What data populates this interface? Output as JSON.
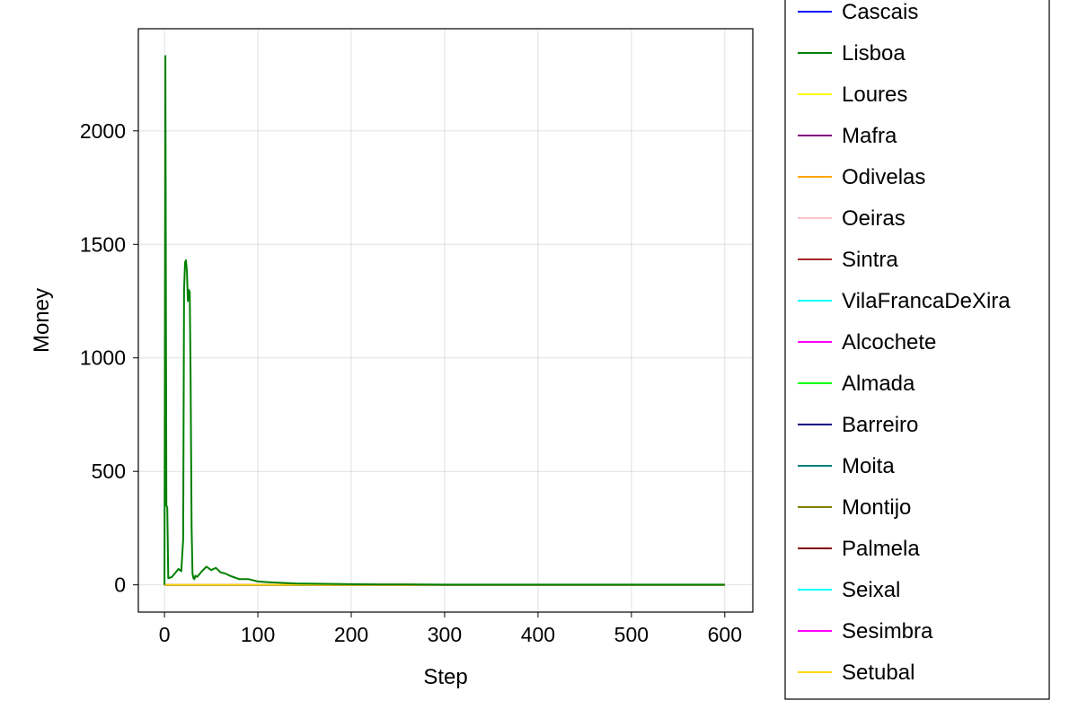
{
  "chart_data": {
    "type": "line",
    "title": "",
    "xlabel": "Step",
    "ylabel": "Money",
    "xlim": [
      -28,
      630
    ],
    "ylim": [
      -120,
      2450
    ],
    "xticks": [
      0,
      100,
      200,
      300,
      400,
      500,
      600
    ],
    "yticks": [
      0,
      500,
      1000,
      1500,
      2000
    ],
    "grid": true,
    "legend_position": "outside-right",
    "series": [
      {
        "name": "Cascais",
        "color": "#0000ff",
        "x": [
          0,
          600
        ],
        "values": [
          0,
          0
        ]
      },
      {
        "name": "Lisboa",
        "color": "#008000",
        "x": [
          0,
          1,
          2,
          3,
          4,
          5,
          8,
          12,
          15,
          18,
          20,
          21,
          22,
          23,
          24,
          25,
          26,
          27,
          28,
          29,
          30,
          31,
          32,
          33,
          35,
          40,
          45,
          50,
          55,
          60,
          65,
          70,
          80,
          90,
          100,
          110,
          120,
          130,
          140,
          160,
          180,
          200,
          230,
          260,
          300,
          400,
          500,
          600
        ],
        "values": [
          0,
          2330,
          350,
          340,
          30,
          30,
          35,
          55,
          70,
          60,
          200,
          1300,
          1420,
          1430,
          1380,
          1250,
          1300,
          1290,
          900,
          250,
          50,
          30,
          25,
          40,
          35,
          60,
          80,
          65,
          75,
          55,
          50,
          40,
          25,
          25,
          15,
          12,
          10,
          8,
          6,
          5,
          4,
          3,
          2,
          2,
          1,
          1,
          1,
          1
        ]
      },
      {
        "name": "Loures",
        "color": "#ffff00",
        "x": [
          0,
          600
        ],
        "values": [
          0,
          0
        ]
      },
      {
        "name": "Mafra",
        "color": "#800080",
        "x": [
          0,
          600
        ],
        "values": [
          0,
          0
        ]
      },
      {
        "name": "Odivelas",
        "color": "#ffa500",
        "x": [
          0,
          600
        ],
        "values": [
          0,
          0
        ]
      },
      {
        "name": "Oeiras",
        "color": "#ffc0cb",
        "x": [
          0,
          600
        ],
        "values": [
          0,
          0
        ]
      },
      {
        "name": "Sintra",
        "color": "#a52a2a",
        "x": [
          0,
          600
        ],
        "values": [
          0,
          0
        ]
      },
      {
        "name": "VilaFrancaDeXira",
        "color": "#00ffff",
        "x": [
          0,
          600
        ],
        "values": [
          0,
          0
        ]
      },
      {
        "name": "Alcochete",
        "color": "#ff00ff",
        "x": [
          0,
          600
        ],
        "values": [
          0,
          0
        ]
      },
      {
        "name": "Almada",
        "color": "#00ff00",
        "x": [
          0,
          600
        ],
        "values": [
          0,
          0
        ]
      },
      {
        "name": "Barreiro",
        "color": "#000080",
        "x": [
          0,
          600
        ],
        "values": [
          0,
          0
        ]
      },
      {
        "name": "Moita",
        "color": "#008080",
        "x": [
          0,
          600
        ],
        "values": [
          0,
          0
        ]
      },
      {
        "name": "Montijo",
        "color": "#808000",
        "x": [
          0,
          600
        ],
        "values": [
          0,
          0
        ]
      },
      {
        "name": "Palmela",
        "color": "#800000",
        "x": [
          0,
          600
        ],
        "values": [
          0,
          0
        ]
      },
      {
        "name": "Seixal",
        "color": "#00ffff",
        "x": [
          0,
          600
        ],
        "values": [
          0,
          0
        ]
      },
      {
        "name": "Sesimbra",
        "color": "#ff00ff",
        "x": [
          0,
          600
        ],
        "values": [
          0,
          0
        ]
      },
      {
        "name": "Setubal",
        "color": "#ffd700",
        "x": [
          0,
          600
        ],
        "values": [
          0,
          0
        ]
      }
    ]
  }
}
